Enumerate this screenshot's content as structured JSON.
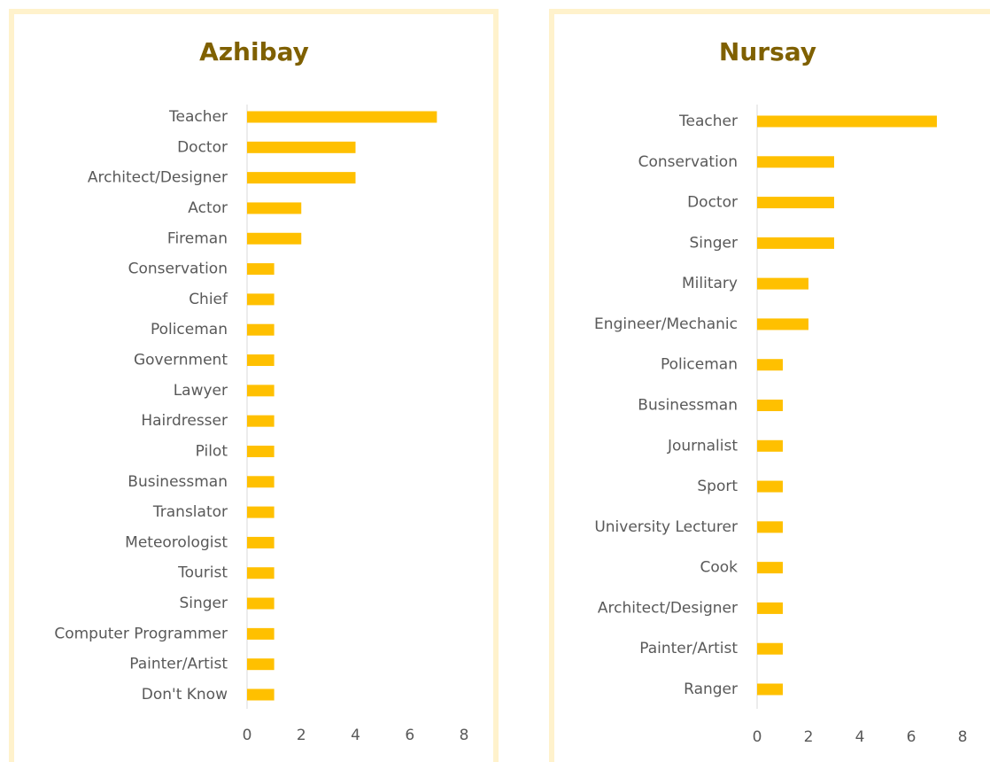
{
  "chart_data": [
    {
      "type": "bar",
      "orientation": "horizontal",
      "title": "Azhibay",
      "categories": [
        "Teacher",
        "Doctor",
        "Architect/Designer",
        "Actor",
        "Fireman",
        "Conservation",
        "Chief",
        "Policeman",
        "Government",
        "Lawyer",
        "Hairdresser",
        "Pilot",
        "Businessman",
        "Translator",
        "Meteorologist",
        "Tourist",
        "Singer",
        "Computer Programmer",
        "Painter/Artist",
        "Don't Know"
      ],
      "values": [
        7,
        4,
        4,
        2,
        2,
        1,
        1,
        1,
        1,
        1,
        1,
        1,
        1,
        1,
        1,
        1,
        1,
        1,
        1,
        1
      ],
      "color": "#ffc000",
      "xlim": [
        0,
        8
      ],
      "xticks": [
        0,
        2,
        4,
        6,
        8
      ]
    },
    {
      "type": "bar",
      "orientation": "horizontal",
      "title": "Nursay",
      "categories": [
        "Teacher",
        "Conservation",
        "Doctor",
        "Singer",
        "Military",
        "Engineer/Mechanic",
        "Policeman",
        "Businessman",
        "Journalist",
        "Sport",
        "University Lecturer",
        "Cook",
        "Architect/Designer",
        "Painter/Artist",
        "Ranger"
      ],
      "values": [
        7,
        3,
        3,
        3,
        2,
        2,
        1,
        1,
        1,
        1,
        1,
        1,
        1,
        1,
        1
      ],
      "color": "#ffc000",
      "xlim": [
        0,
        8
      ],
      "xticks": [
        0,
        2,
        4,
        6,
        8
      ]
    }
  ]
}
